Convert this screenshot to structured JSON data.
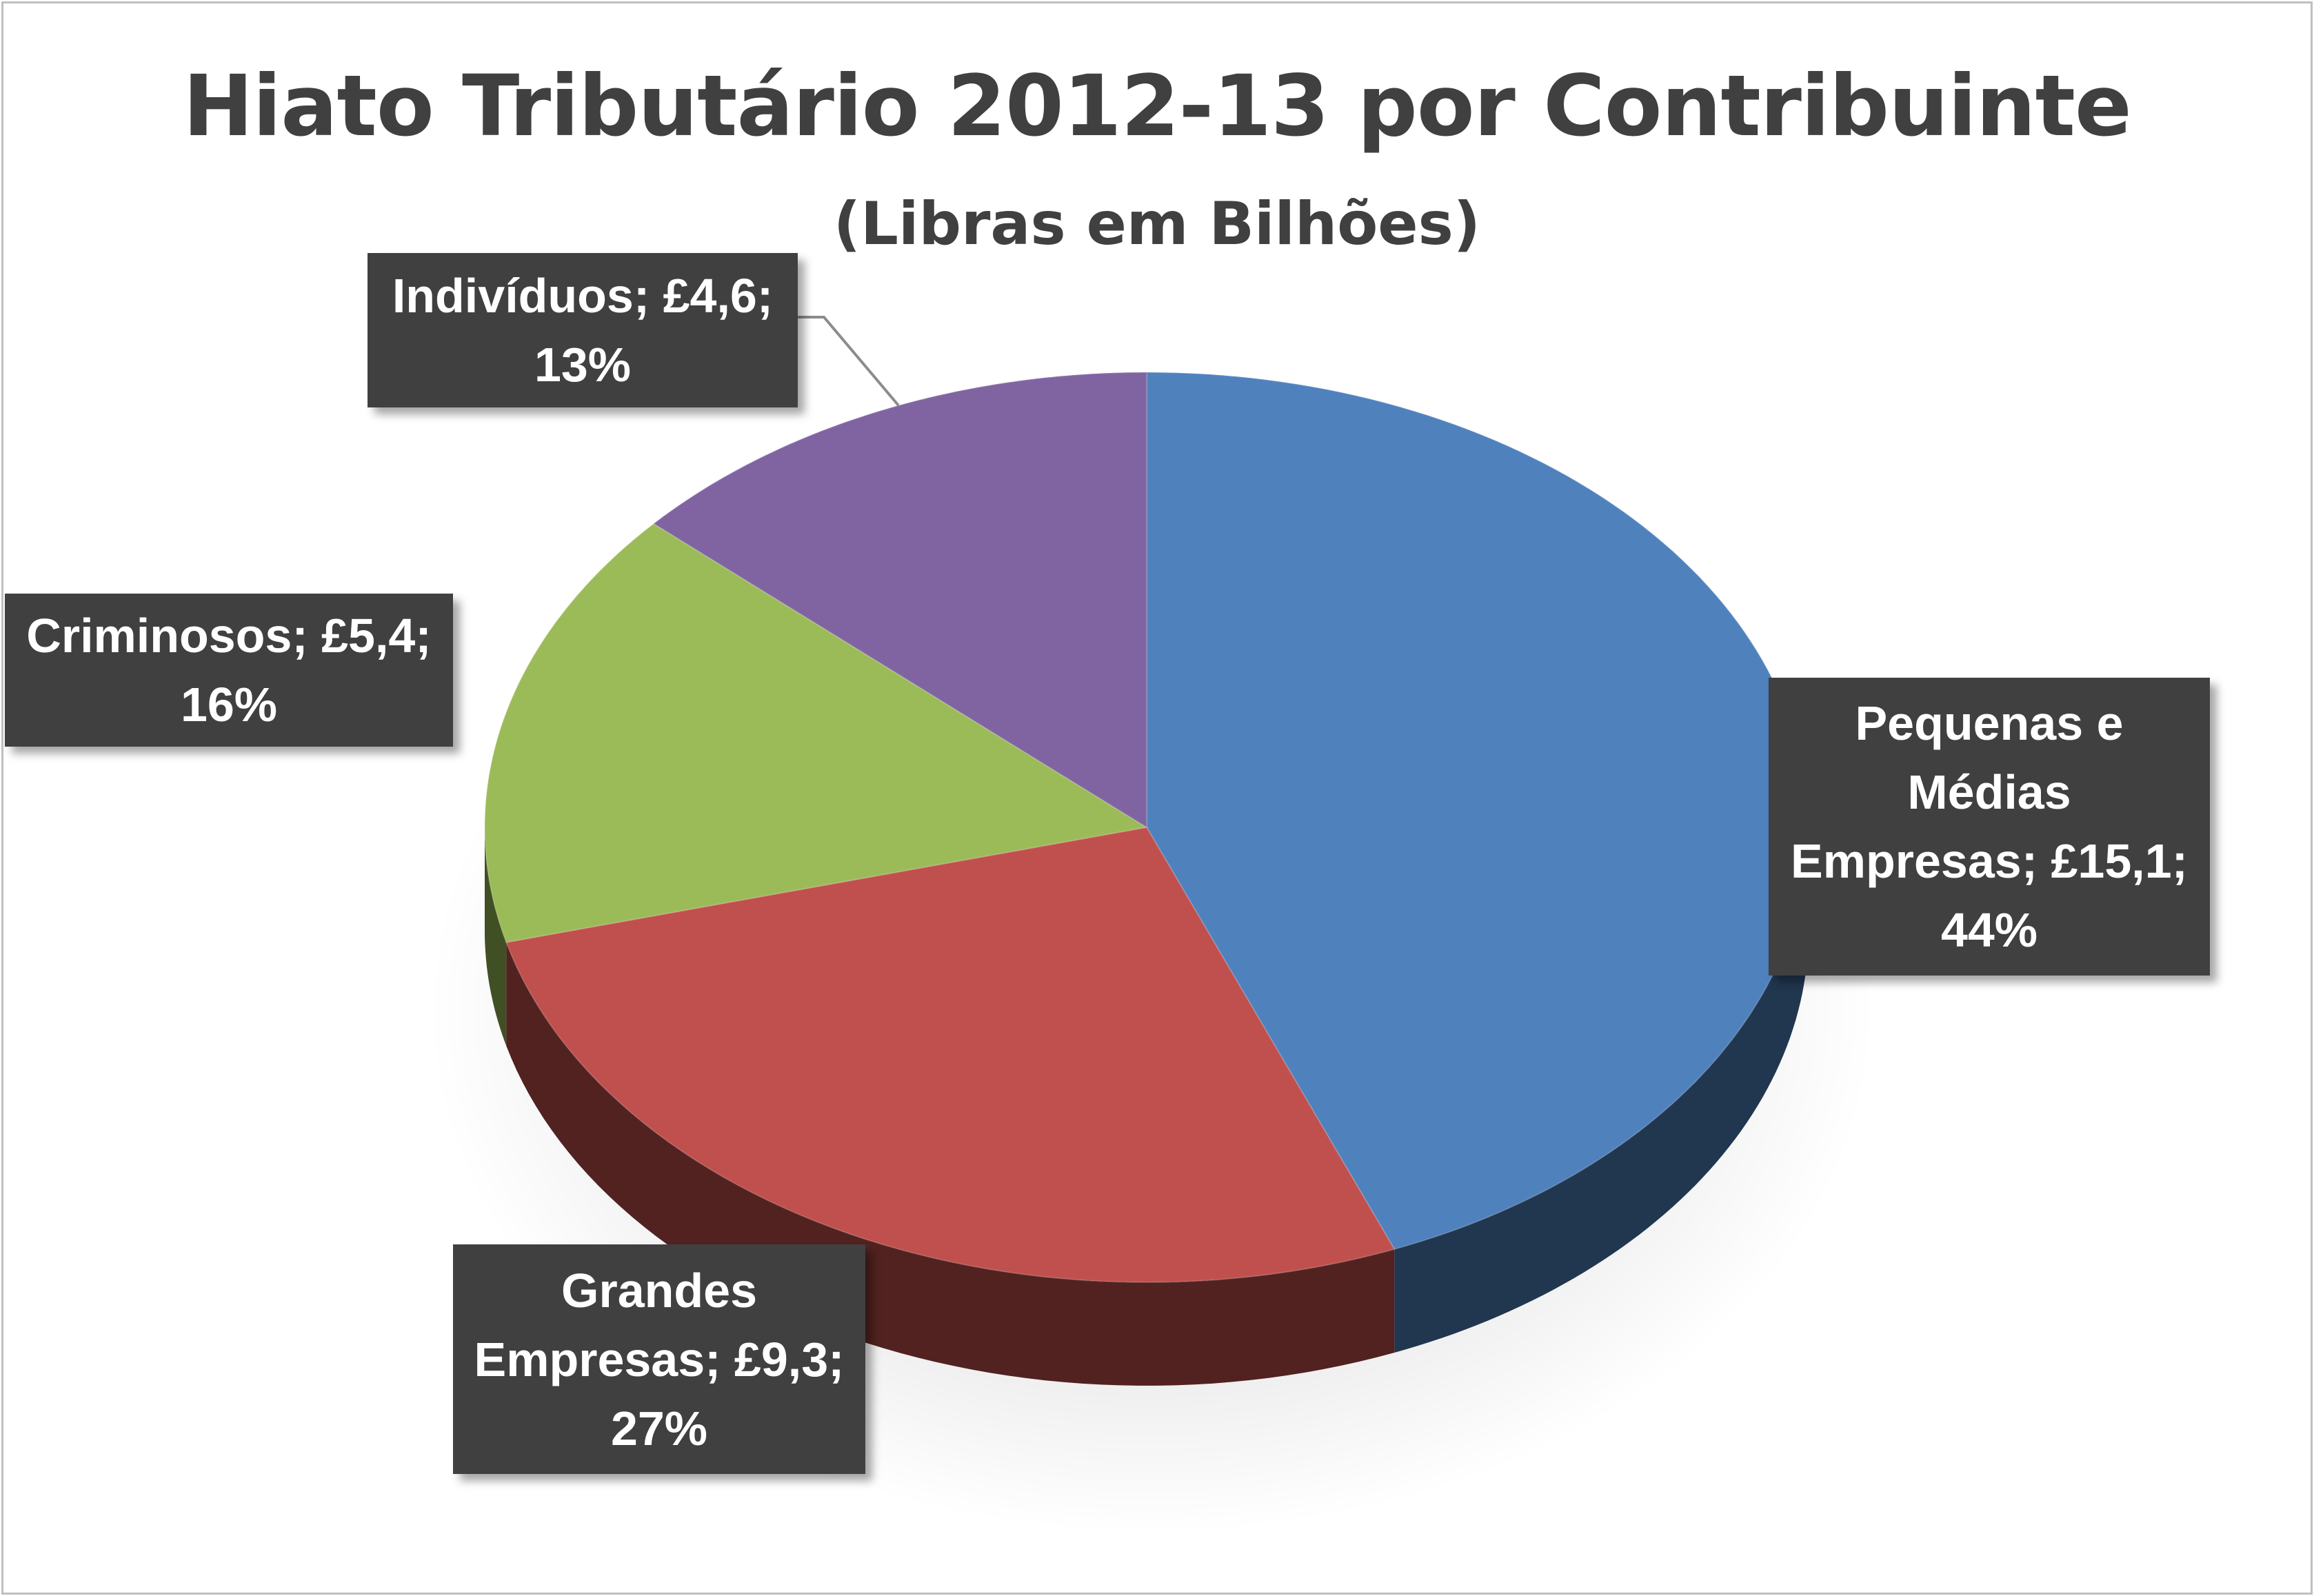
{
  "chart_data": {
    "type": "pie",
    "title": "Hiato Tributário 2012-13 por Contribuinte",
    "subtitle": "(Libras em Bilhões)",
    "slices": [
      {
        "name": "Pequenas e Médias Empresas",
        "value": 15.1,
        "percent": 44,
        "label": "Pequenas e Médias Empresas; £15,1; 44%",
        "color": "#4f81bd"
      },
      {
        "name": "Grandes Empresas",
        "value": 9.3,
        "percent": 27,
        "label": "Grandes Empresas; £9,3; 27%",
        "color": "#c0504d"
      },
      {
        "name": "Criminosos",
        "value": 5.4,
        "percent": 16,
        "label": "Criminosos; £5,4; 16%",
        "color": "#9bbb59"
      },
      {
        "name": "Indivíduos",
        "value": 4.6,
        "percent": 13,
        "label": "Indivíduos; £4,6; 13%",
        "color": "#8064a2"
      }
    ],
    "style": "3d-pie",
    "legend": "none",
    "label_background": "#404040",
    "label_color": "#ffffff"
  }
}
